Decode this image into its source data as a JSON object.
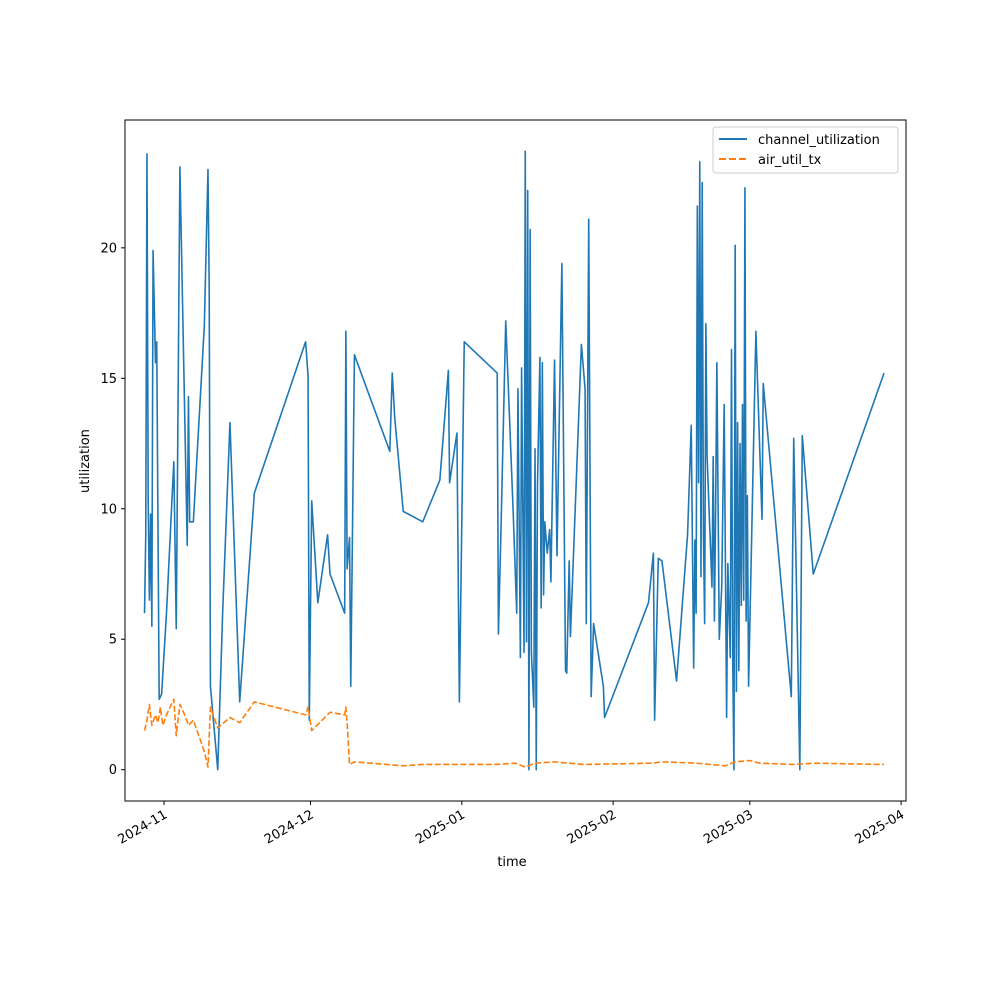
{
  "chart_data": {
    "type": "line",
    "title": "",
    "xlabel": "time",
    "ylabel": "utilization",
    "xlim": [
      "2024-10-24",
      "2025-04-02"
    ],
    "ylim": [
      -1.2,
      24.9
    ],
    "grid": false,
    "legend_position": "top-right",
    "x_ticks": [
      {
        "date": "2024-11-01",
        "label": "2024-11"
      },
      {
        "date": "2024-12-01",
        "label": "2024-12"
      },
      {
        "date": "2025-01-01",
        "label": "2025-01"
      },
      {
        "date": "2025-02-01",
        "label": "2025-02"
      },
      {
        "date": "2025-03-01",
        "label": "2025-03"
      },
      {
        "date": "2025-04-01",
        "label": "2025-04"
      }
    ],
    "y_ticks": [
      0,
      5,
      10,
      15,
      20
    ],
    "series": [
      {
        "name": "channel_utilization",
        "color": "#1f77b4",
        "dash": "solid",
        "points": [
          [
            "2024-10-28T00:00",
            6.0
          ],
          [
            "2024-10-28T06:00",
            9.0
          ],
          [
            "2024-10-28T12:00",
            23.6
          ],
          [
            "2024-10-28T18:00",
            10.3
          ],
          [
            "2024-10-29T00:00",
            6.5
          ],
          [
            "2024-10-29T06:00",
            9.8
          ],
          [
            "2024-10-29T12:00",
            5.5
          ],
          [
            "2024-10-29T18:00",
            19.9
          ],
          [
            "2024-10-30T06:00",
            15.6
          ],
          [
            "2024-10-30T12:00",
            16.4
          ],
          [
            "2024-10-31T00:00",
            2.7
          ],
          [
            "2024-10-31T12:00",
            2.9
          ],
          [
            "2024-11-01T12:00",
            6.0
          ],
          [
            "2024-11-03T00:00",
            11.8
          ],
          [
            "2024-11-03T12:00",
            5.4
          ],
          [
            "2024-11-04T06:00",
            23.1
          ],
          [
            "2024-11-05T18:00",
            8.6
          ],
          [
            "2024-11-06T00:00",
            14.3
          ],
          [
            "2024-11-06T06:00",
            9.5
          ],
          [
            "2024-11-07T00:00",
            9.5
          ],
          [
            "2024-11-09T06:00",
            17.0
          ],
          [
            "2024-11-10T00:00",
            23.0
          ],
          [
            "2024-11-10T06:00",
            18.5
          ],
          [
            "2024-11-10T12:00",
            3.2
          ],
          [
            "2024-11-12T00:00",
            0.0
          ],
          [
            "2024-11-13T00:00",
            6.0
          ],
          [
            "2024-11-14T12:00",
            13.3
          ],
          [
            "2024-11-16T12:00",
            2.6
          ],
          [
            "2024-11-19T12:00",
            10.6
          ],
          [
            "2024-11-30T00:00",
            16.4
          ],
          [
            "2024-11-30T12:00",
            15.1
          ],
          [
            "2024-11-30T18:00",
            1.9
          ],
          [
            "2024-12-01T06:00",
            10.3
          ],
          [
            "2024-12-02T12:00",
            6.4
          ],
          [
            "2024-12-04T12:00",
            9.0
          ],
          [
            "2024-12-05T00:00",
            7.5
          ],
          [
            "2024-12-08T00:00",
            6.0
          ],
          [
            "2024-12-08T06:00",
            16.8
          ],
          [
            "2024-12-08T12:00",
            7.7
          ],
          [
            "2024-12-09T00:00",
            8.9
          ],
          [
            "2024-12-09T06:00",
            3.2
          ],
          [
            "2024-12-10T00:00",
            15.9
          ],
          [
            "2024-12-17T06:00",
            12.2
          ],
          [
            "2024-12-17T18:00",
            15.2
          ],
          [
            "2024-12-18T06:00",
            13.5
          ],
          [
            "2024-12-20T00:00",
            9.9
          ],
          [
            "2024-12-24T00:00",
            9.5
          ],
          [
            "2024-12-27T12:00",
            11.1
          ],
          [
            "2024-12-29T06:00",
            15.3
          ],
          [
            "2024-12-29T12:00",
            11.0
          ],
          [
            "2024-12-31T00:00",
            12.9
          ],
          [
            "2024-12-31T12:00",
            2.6
          ],
          [
            "2025-01-01T12:00",
            16.4
          ],
          [
            "2025-01-08T06:00",
            15.2
          ],
          [
            "2025-01-08T12:00",
            5.2
          ],
          [
            "2025-01-09T00:00",
            9.0
          ],
          [
            "2025-01-10T00:00",
            17.2
          ],
          [
            "2025-01-11T12:00",
            10.0
          ],
          [
            "2025-01-12T06:00",
            6.0
          ],
          [
            "2025-01-12T12:00",
            14.6
          ],
          [
            "2025-01-13T00:00",
            4.3
          ],
          [
            "2025-01-13T06:00",
            15.4
          ],
          [
            "2025-01-13T18:00",
            4.5
          ],
          [
            "2025-01-14T00:00",
            23.7
          ],
          [
            "2025-01-14T06:00",
            4.9
          ],
          [
            "2025-01-14T12:00",
            22.2
          ],
          [
            "2025-01-14T18:00",
            0.0
          ],
          [
            "2025-01-15T00:00",
            20.7
          ],
          [
            "2025-01-15T06:00",
            4.5
          ],
          [
            "2025-01-15T18:00",
            2.4
          ],
          [
            "2025-01-16T00:00",
            12.3
          ],
          [
            "2025-01-16T06:00",
            0.0
          ],
          [
            "2025-01-16T12:00",
            10.9
          ],
          [
            "2025-01-17T00:00",
            15.8
          ],
          [
            "2025-01-17T06:00",
            6.2
          ],
          [
            "2025-01-17T12:00",
            15.6
          ],
          [
            "2025-01-17T18:00",
            6.7
          ],
          [
            "2025-01-18T00:00",
            9.5
          ],
          [
            "2025-01-18T12:00",
            8.3
          ],
          [
            "2025-01-19T00:00",
            9.2
          ],
          [
            "2025-01-19T06:00",
            7.2
          ],
          [
            "2025-01-20T00:00",
            15.7
          ],
          [
            "2025-01-20T12:00",
            8.2
          ],
          [
            "2025-01-21T12:00",
            19.4
          ],
          [
            "2025-01-22T06:00",
            3.8
          ],
          [
            "2025-01-22T12:00",
            3.7
          ],
          [
            "2025-01-23T00:00",
            8.0
          ],
          [
            "2025-01-23T06:00",
            5.1
          ],
          [
            "2025-01-25T12:00",
            16.3
          ],
          [
            "2025-01-26T06:00",
            14.6
          ],
          [
            "2025-01-26T12:00",
            5.6
          ],
          [
            "2025-01-27T00:00",
            21.1
          ],
          [
            "2025-01-27T12:00",
            2.8
          ],
          [
            "2025-01-28T00:00",
            5.6
          ],
          [
            "2025-01-30T00:00",
            3.2
          ],
          [
            "2025-01-30T06:00",
            2.0
          ],
          [
            "2025-02-08T06:00",
            6.4
          ],
          [
            "2025-02-09T06:00",
            8.3
          ],
          [
            "2025-02-09T12:00",
            1.9
          ],
          [
            "2025-02-10T06:00",
            8.1
          ],
          [
            "2025-02-11T00:00",
            8.0
          ],
          [
            "2025-02-14T00:00",
            3.4
          ],
          [
            "2025-02-16T06:00",
            9.0
          ],
          [
            "2025-02-17T00:00",
            13.2
          ],
          [
            "2025-02-17T12:00",
            3.9
          ],
          [
            "2025-02-17T18:00",
            8.8
          ],
          [
            "2025-02-18T00:00",
            6.0
          ],
          [
            "2025-02-18T06:00",
            21.6
          ],
          [
            "2025-02-18T12:00",
            11.0
          ],
          [
            "2025-02-18T18:00",
            23.3
          ],
          [
            "2025-02-19T00:00",
            7.4
          ],
          [
            "2025-02-19T06:00",
            22.5
          ],
          [
            "2025-02-19T12:00",
            9.0
          ],
          [
            "2025-02-19T18:00",
            5.6
          ],
          [
            "2025-02-20T00:00",
            17.1
          ],
          [
            "2025-02-20T06:00",
            12.0
          ],
          [
            "2025-02-21T06:00",
            7.0
          ],
          [
            "2025-02-21T12:00",
            12.0
          ],
          [
            "2025-02-21T18:00",
            5.7
          ],
          [
            "2025-02-22T00:00",
            10.0
          ],
          [
            "2025-02-22T06:00",
            15.6
          ],
          [
            "2025-02-22T18:00",
            5.0
          ],
          [
            "2025-02-23T06:00",
            7.0
          ],
          [
            "2025-02-23T18:00",
            14.0
          ],
          [
            "2025-02-24T00:00",
            8.0
          ],
          [
            "2025-02-24T06:00",
            2.0
          ],
          [
            "2025-02-24T12:00",
            7.9
          ],
          [
            "2025-02-25T00:00",
            4.3
          ],
          [
            "2025-02-25T06:00",
            16.1
          ],
          [
            "2025-02-25T12:00",
            4.3
          ],
          [
            "2025-02-25T18:00",
            0.0
          ],
          [
            "2025-02-26T00:00",
            20.1
          ],
          [
            "2025-02-26T06:00",
            3.0
          ],
          [
            "2025-02-26T12:00",
            13.3
          ],
          [
            "2025-02-26T18:00",
            3.8
          ],
          [
            "2025-02-27T00:00",
            12.5
          ],
          [
            "2025-02-27T06:00",
            6.3
          ],
          [
            "2025-02-27T12:00",
            14.0
          ],
          [
            "2025-02-27T18:00",
            6.5
          ],
          [
            "2025-02-28T00:00",
            22.3
          ],
          [
            "2025-02-28T06:00",
            5.7
          ],
          [
            "2025-02-28T12:00",
            10.5
          ],
          [
            "2025-02-28T18:00",
            3.2
          ],
          [
            "2025-03-02T06:00",
            16.8
          ],
          [
            "2025-03-03T12:00",
            9.6
          ],
          [
            "2025-03-03T18:00",
            14.8
          ],
          [
            "2025-03-09T12:00",
            2.8
          ],
          [
            "2025-03-10T00:00",
            12.7
          ],
          [
            "2025-03-11T06:00",
            0.0
          ],
          [
            "2025-03-11T18:00",
            12.8
          ],
          [
            "2025-03-14T00:00",
            7.5
          ],
          [
            "2025-03-28T12:00",
            15.2
          ]
        ]
      },
      {
        "name": "air_util_tx",
        "color": "#ff7f0e",
        "dash": "dashed",
        "points": [
          [
            "2024-10-28T00:00",
            1.5
          ],
          [
            "2024-10-28T12:00",
            1.9
          ],
          [
            "2024-10-29T00:00",
            2.5
          ],
          [
            "2024-10-29T12:00",
            1.7
          ],
          [
            "2024-10-30T06:00",
            2.1
          ],
          [
            "2024-10-30T18:00",
            1.8
          ],
          [
            "2024-10-31T06:00",
            2.4
          ],
          [
            "2024-10-31T18:00",
            1.7
          ],
          [
            "2024-11-01T12:00",
            2.1
          ],
          [
            "2024-11-03T00:00",
            2.7
          ],
          [
            "2024-11-03T12:00",
            1.3
          ],
          [
            "2024-11-04T06:00",
            2.5
          ],
          [
            "2024-11-05T06:00",
            2.1
          ],
          [
            "2024-11-06T00:00",
            1.7
          ],
          [
            "2024-11-07T00:00",
            1.9
          ],
          [
            "2024-11-09T06:00",
            0.7
          ],
          [
            "2024-11-10T00:00",
            0.1
          ],
          [
            "2024-11-10T12:00",
            2.4
          ],
          [
            "2024-11-12T00:00",
            1.6
          ],
          [
            "2024-11-14T12:00",
            2.0
          ],
          [
            "2024-11-16T12:00",
            1.8
          ],
          [
            "2024-11-19T12:00",
            2.6
          ],
          [
            "2024-11-30T00:00",
            2.1
          ],
          [
            "2024-11-30T12:00",
            2.4
          ],
          [
            "2024-12-01T06:00",
            1.5
          ],
          [
            "2024-12-05T00:00",
            2.2
          ],
          [
            "2024-12-08T00:00",
            2.1
          ],
          [
            "2024-12-08T06:00",
            2.4
          ],
          [
            "2024-12-08T12:00",
            1.8
          ],
          [
            "2024-12-09T00:00",
            0.2
          ],
          [
            "2024-12-10T00:00",
            0.3
          ],
          [
            "2024-12-20T00:00",
            0.15
          ],
          [
            "2024-12-24T00:00",
            0.2
          ],
          [
            "2025-01-08T00:00",
            0.2
          ],
          [
            "2025-01-12T00:00",
            0.25
          ],
          [
            "2025-01-14T00:00",
            0.1
          ],
          [
            "2025-01-16T00:00",
            0.25
          ],
          [
            "2025-01-20T00:00",
            0.3
          ],
          [
            "2025-01-26T00:00",
            0.2
          ],
          [
            "2025-02-09T00:00",
            0.25
          ],
          [
            "2025-02-11T00:00",
            0.3
          ],
          [
            "2025-02-18T00:00",
            0.25
          ],
          [
            "2025-02-24T00:00",
            0.15
          ],
          [
            "2025-02-26T00:00",
            0.3
          ],
          [
            "2025-03-01T00:00",
            0.35
          ],
          [
            "2025-03-03T00:00",
            0.25
          ],
          [
            "2025-03-10T00:00",
            0.2
          ],
          [
            "2025-03-14T00:00",
            0.25
          ],
          [
            "2025-03-28T12:00",
            0.2
          ]
        ]
      }
    ]
  }
}
